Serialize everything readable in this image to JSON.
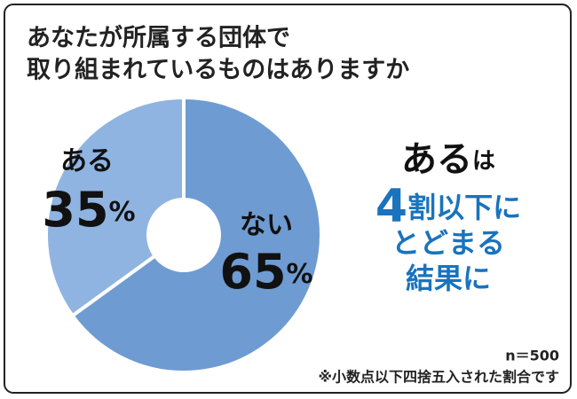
{
  "chart_data": {
    "type": "pie",
    "title_lines": [
      "あなたが所属する団体で",
      "取り組まれているものはありますか"
    ],
    "categories": [
      "ない",
      "ある"
    ],
    "values": [
      65,
      35
    ],
    "value_labels": [
      "65%",
      "35%"
    ],
    "colors": [
      "#6e9bd2",
      "#8fb4e1"
    ],
    "annotation_lines": [
      [
        "ある",
        "は"
      ],
      [
        "4",
        "割以下に"
      ],
      [
        "とどまる"
      ],
      [
        "結果に"
      ]
    ],
    "notes": [
      "n＝500",
      "※小数点以下四捨五入された割合です"
    ]
  }
}
